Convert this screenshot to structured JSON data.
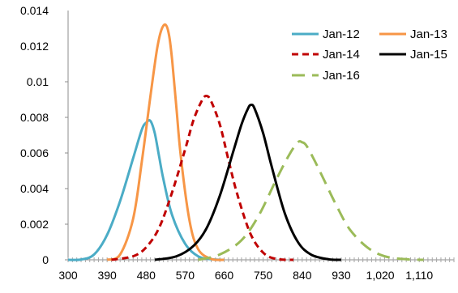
{
  "chart_data": {
    "type": "line",
    "title": "",
    "xlabel": "",
    "ylabel": "",
    "xlim": [
      300,
      1190
    ],
    "ylim": [
      0,
      0.014
    ],
    "x_ticks": [
      300,
      390,
      480,
      570,
      660,
      750,
      840,
      930,
      1020,
      1110
    ],
    "x_tick_labels": [
      "300",
      "390",
      "480",
      "570",
      "660",
      "750",
      "840",
      "930",
      "1,020",
      "1,110"
    ],
    "y_ticks": [
      0,
      0.002,
      0.004,
      0.006,
      0.008,
      0.01,
      0.012,
      0.014
    ],
    "y_tick_labels": [
      "0",
      "0.002",
      "0.004",
      "0.006",
      "0.008",
      "0.01",
      "0.012",
      "0.014"
    ],
    "grid": false,
    "legend_position": "top-right",
    "series": [
      {
        "name": "Jan-12",
        "color": "#4bacc6",
        "dash": "solid",
        "x": [
          300,
          330,
          360,
          390,
          420,
          450,
          470,
          480,
          490,
          500,
          510,
          520,
          540,
          570,
          600,
          630,
          660
        ],
        "y": [
          0,
          2e-05,
          0.0003,
          0.0014,
          0.0033,
          0.0057,
          0.0073,
          0.0077,
          0.0078,
          0.0071,
          0.0058,
          0.0045,
          0.0025,
          0.0009,
          0.0002,
          3e-05,
          0
        ]
      },
      {
        "name": "Jan-13",
        "color": "#f79646",
        "dash": "solid",
        "x": [
          390,
          420,
          450,
          470,
          490,
          505,
          515,
          525,
          533,
          540,
          550,
          560,
          580,
          600,
          630,
          660
        ],
        "y": [
          0,
          0.0003,
          0.0023,
          0.0055,
          0.0092,
          0.0118,
          0.0129,
          0.0132,
          0.0126,
          0.0112,
          0.0085,
          0.0058,
          0.0022,
          0.0006,
          5e-05,
          0
        ]
      },
      {
        "name": "Jan-14",
        "color": "#c00000",
        "dash": "dashed",
        "x": [
          400,
          450,
          480,
          510,
          540,
          570,
          590,
          610,
          620,
          630,
          650,
          670,
          690,
          720,
          750,
          780,
          820
        ],
        "y": [
          0,
          0.0002,
          0.0007,
          0.0018,
          0.0038,
          0.0062,
          0.0079,
          0.009,
          0.0092,
          0.0089,
          0.0076,
          0.0056,
          0.0037,
          0.0015,
          0.0004,
          5e-05,
          0
        ]
      },
      {
        "name": "Jan-15",
        "color": "#000000",
        "dash": "solid",
        "x": [
          500,
          550,
          590,
          620,
          650,
          680,
          700,
          715,
          722,
          730,
          750,
          770,
          800,
          830,
          860,
          900,
          930
        ],
        "y": [
          0,
          0.0002,
          0.0008,
          0.0018,
          0.0036,
          0.006,
          0.0076,
          0.0085,
          0.0087,
          0.0085,
          0.0071,
          0.0052,
          0.0026,
          0.001,
          0.0003,
          3e-05,
          0
        ]
      },
      {
        "name": "Jan-16",
        "color": "#9bbb59",
        "dash": "longdash",
        "x": [
          600,
          650,
          700,
          740,
          780,
          810,
          830,
          840,
          850,
          870,
          890,
          920,
          950,
          990,
          1030,
          1080,
          1120
        ],
        "y": [
          0,
          0.0003,
          0.0011,
          0.0025,
          0.0045,
          0.0059,
          0.0066,
          0.0066,
          0.0064,
          0.0055,
          0.0045,
          0.003,
          0.0017,
          0.0007,
          0.0002,
          3e-05,
          0
        ]
      }
    ]
  }
}
